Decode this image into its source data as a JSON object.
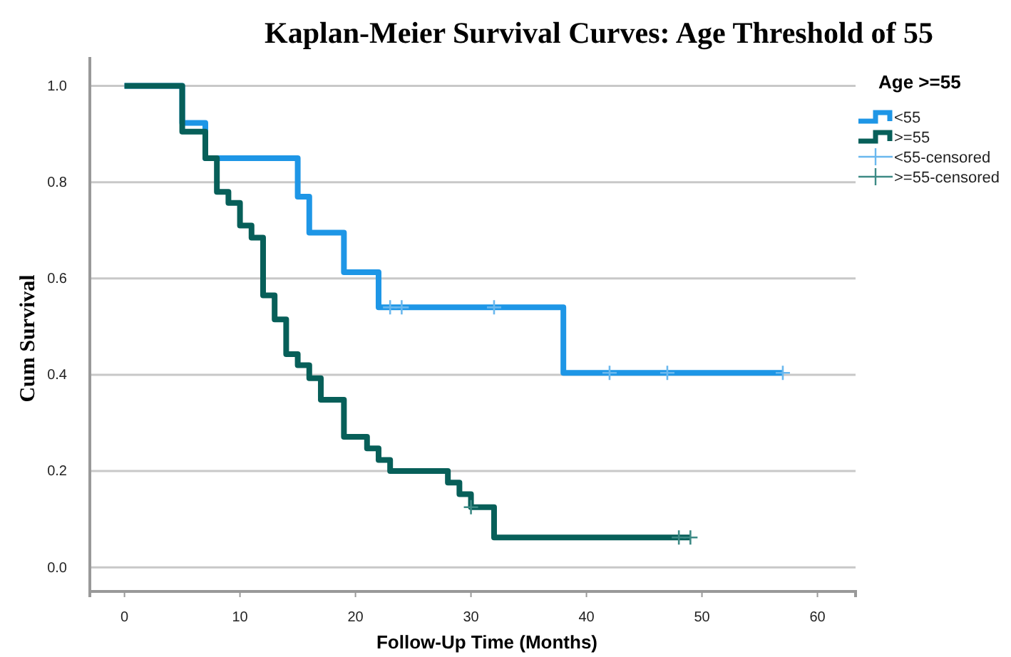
{
  "chart_data": {
    "type": "step",
    "title": "Kaplan-Meier Survival Curves: Age Threshold of 55",
    "xlabel": "Follow-Up Time (Months)",
    "ylabel": "Cum Survival",
    "legend_title": "Age >=55",
    "legend": "top right",
    "grid": "y",
    "xlim": [
      -3,
      63.3
    ],
    "xticks": [
      0,
      10,
      20,
      30,
      40,
      50,
      60
    ],
    "ylim": [
      -0.05,
      1.06
    ],
    "yticks": [
      {
        "value": 0,
        "label": "0.0"
      },
      {
        "value": 0.2,
        "label": "0.2"
      },
      {
        "value": 0.4,
        "label": "0.4"
      },
      {
        "value": 0.6,
        "label": "0.6"
      },
      {
        "value": 0.8,
        "label": "0.8"
      },
      {
        "value": 1,
        "label": "1.0"
      }
    ],
    "series": [
      {
        "name": "<55",
        "color": "#1e96e6",
        "x": [
          0,
          5,
          7,
          15,
          16,
          19,
          22,
          38,
          57
        ],
        "values": [
          1,
          0.923,
          0.85,
          0.77,
          0.695,
          0.613,
          0.54,
          0.404,
          0.404
        ]
      },
      {
        "name": ">=55",
        "color": "#075f59",
        "x": [
          0,
          5,
          7,
          8,
          9,
          10,
          11,
          12,
          13,
          14,
          15,
          16,
          17,
          19,
          21,
          22,
          23,
          28,
          29,
          30,
          32,
          49
        ],
        "values": [
          1,
          0.905,
          0.85,
          0.78,
          0.757,
          0.71,
          0.685,
          0.565,
          0.515,
          0.443,
          0.42,
          0.393,
          0.348,
          0.271,
          0.247,
          0.223,
          0.2,
          0.176,
          0.152,
          0.125,
          0.062,
          0.062
        ]
      },
      {
        "name": "<55-censored",
        "type": "scatter",
        "marker": "cross",
        "color": "#6ab8ee",
        "x": [
          23,
          24,
          32,
          42,
          47,
          57
        ],
        "values": [
          0.54,
          0.54,
          0.54,
          0.404,
          0.404,
          0.404
        ]
      },
      {
        "name": ">=55-censored",
        "type": "scatter",
        "marker": "cross",
        "color": "#3d8a85",
        "x": [
          30,
          48,
          49
        ],
        "values": [
          0.125,
          0.062,
          0.062
        ]
      }
    ]
  }
}
